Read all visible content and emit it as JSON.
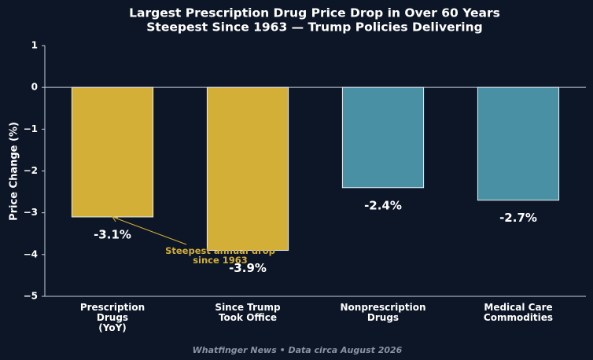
{
  "chart_data": {
    "type": "bar",
    "title": "Largest Prescription Drug Price Drop in Over 60 Years",
    "subtitle": "Steepest Since 1963 — Trump Policies Delivering",
    "ylabel": "Price Change (%)",
    "categories": [
      "Prescription\nDrugs\n(YoY)",
      "Since Trump\nTook Office",
      "Nonprescription\nDrugs",
      "Medical Care\nCommodities"
    ],
    "values": [
      -3.1,
      -3.9,
      -2.4,
      -2.7
    ],
    "value_labels": [
      "-3.1%",
      "-3.9%",
      "-2.4%",
      "-2.7%"
    ],
    "colors": [
      "#d4af37",
      "#d4af37",
      "#4a90a4",
      "#4a90a4"
    ],
    "ylim": [
      -5,
      1
    ],
    "yticks": [
      {
        "value": -5,
        "label": "−5"
      },
      {
        "value": -4,
        "label": "−4"
      },
      {
        "value": -3,
        "label": "−3"
      },
      {
        "value": -2,
        "label": "−2"
      },
      {
        "value": -1,
        "label": "−1"
      },
      0,
      1
    ],
    "annotation": "Steepest annual drop\nsince 1963",
    "footer": "Whatfinger News • Data circa August 2026"
  }
}
